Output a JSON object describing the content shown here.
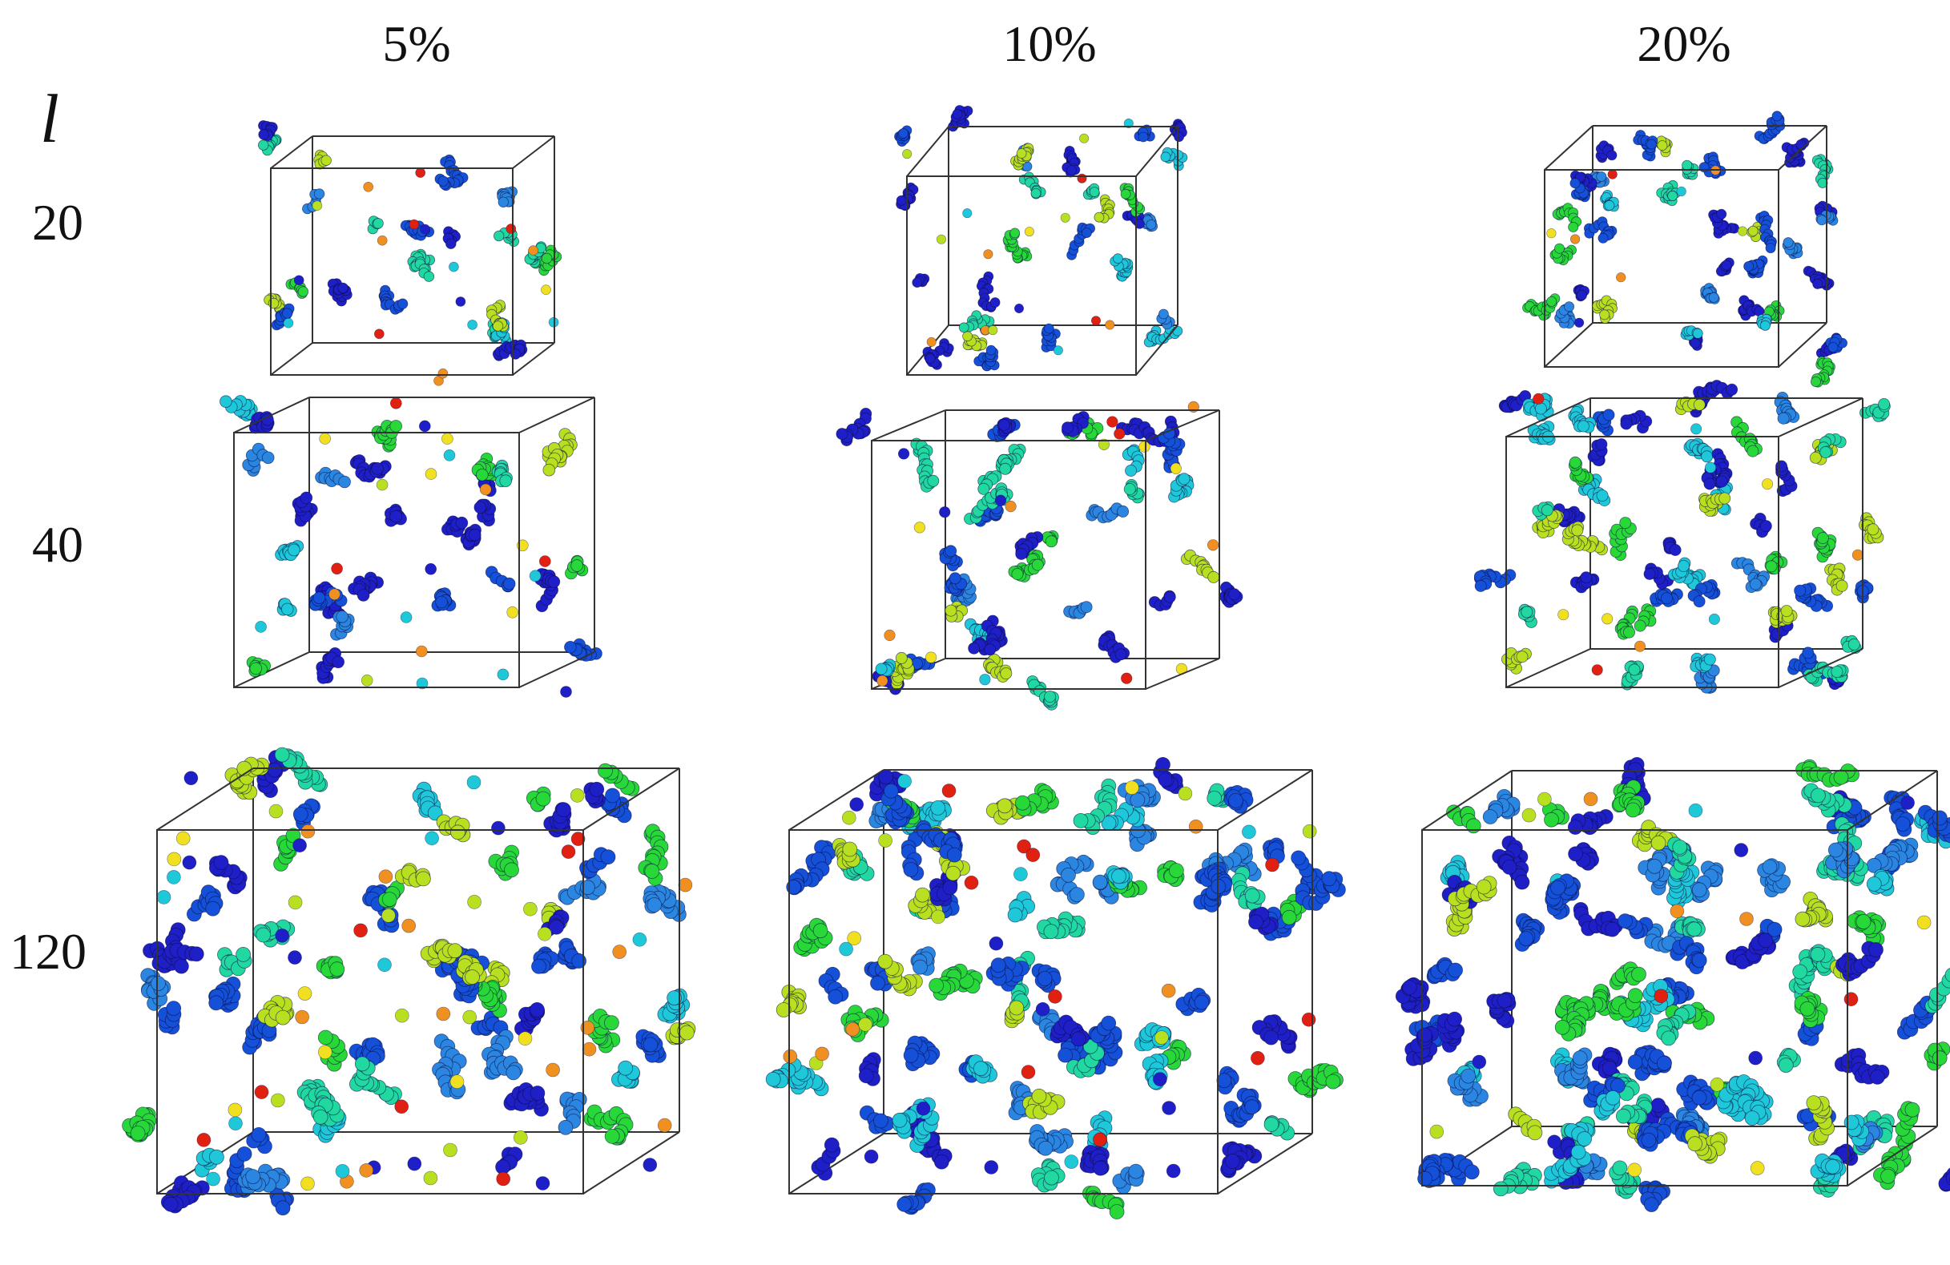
{
  "figure": {
    "column_headers": [
      "5%",
      "10%",
      "20%"
    ],
    "row_axis_symbol": "l",
    "row_labels": [
      "20",
      "40",
      "120"
    ],
    "panels": [
      {
        "row": "20",
        "column": "5%",
        "clusters": 22,
        "loose_particles": 18
      },
      {
        "row": "20",
        "column": "10%",
        "clusters": 30,
        "loose_particles": 16
      },
      {
        "row": "20",
        "column": "20%",
        "clusters": 40,
        "loose_particles": 8
      },
      {
        "row": "40",
        "column": "5%",
        "clusters": 28,
        "loose_particles": 22
      },
      {
        "row": "40",
        "column": "10%",
        "clusters": 42,
        "loose_particles": 18
      },
      {
        "row": "40",
        "column": "20%",
        "clusters": 60,
        "loose_particles": 10
      },
      {
        "row": "120",
        "column": "5%",
        "clusters": 70,
        "loose_particles": 60
      },
      {
        "row": "120",
        "column": "10%",
        "clusters": 95,
        "loose_particles": 40
      },
      {
        "row": "120",
        "column": "20%",
        "clusters": 130,
        "loose_particles": 18
      }
    ],
    "palette": {
      "deep_blue": "#1f1fc8",
      "blue": "#1550d8",
      "azure": "#2a86e0",
      "cyan": "#1ec8d8",
      "aqua_green": "#20d8a0",
      "green": "#28d838",
      "yellow_green": "#b8e020",
      "yellow": "#f0e020",
      "orange": "#f09020",
      "red": "#e02010",
      "edge": "#0a0a40",
      "box_line": "#333333"
    }
  }
}
